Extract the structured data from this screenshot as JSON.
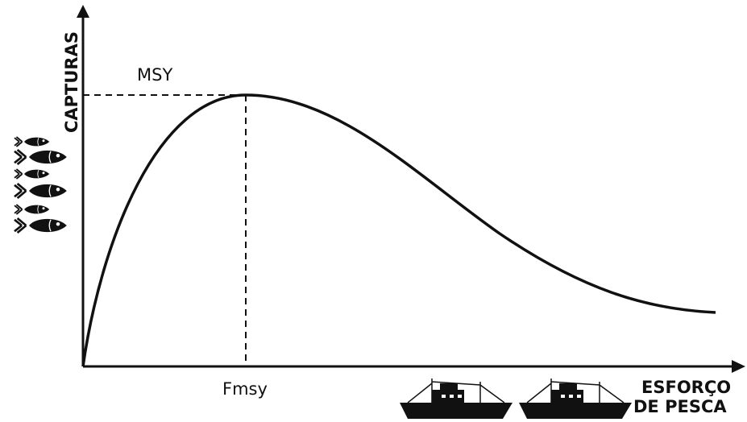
{
  "y_axis_label": "CAPTURAS",
  "x_axis_label": [
    "ESFORÇO",
    "DE PESCA"
  ],
  "peak_label": "MSY",
  "effort_label": "Fmsy"
}
